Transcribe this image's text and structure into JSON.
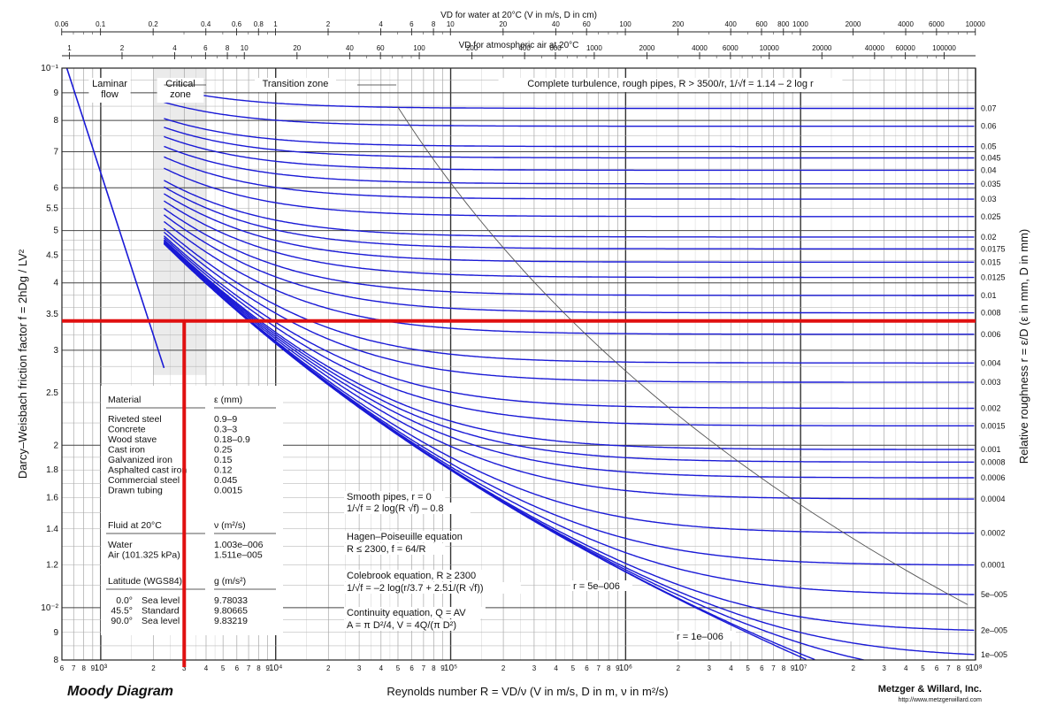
{
  "chart_data": {
    "type": "line",
    "title": "Moody Diagram",
    "publisher": "Metzger & Willard, Inc.",
    "url": "http://www.metzgerwillard.com",
    "x_axis": {
      "label_prefix": "Reynolds number",
      "label_formula": "R = VD/ν",
      "label_units": "(V in m/s, D in m, ν in m²/s)",
      "scale": "log",
      "range": [
        600,
        100000000
      ],
      "major_labels": [
        "10³",
        "10⁴",
        "10⁵",
        "10⁶",
        "10⁷",
        "10⁸"
      ]
    },
    "y_axis": {
      "label_prefix": "Darcy–Weisbach friction factor",
      "label_formula": "f = 2hDg / LV²",
      "scale": "log",
      "range": [
        0.008,
        0.1
      ],
      "tick_labels": [
        "10⁻¹",
        "9",
        "8",
        "7",
        "6",
        "5.5",
        "5",
        "4.5",
        "4",
        "3.5",
        "3",
        "2.5",
        "2",
        "1.8",
        "1.6",
        "1.4",
        "1.2",
        "10⁻²",
        "9",
        "8"
      ]
    },
    "right_axis": {
      "label": "Relative roughness  r = ε/D  (ε in mm, D in mm)",
      "values": [
        0.07,
        0.06,
        0.05,
        0.045,
        0.04,
        0.035,
        0.03,
        0.025,
        0.02,
        0.0175,
        0.015,
        0.0125,
        0.01,
        0.008,
        0.006,
        0.004,
        0.003,
        0.002,
        0.0015,
        0.001,
        0.0008,
        0.0006,
        0.0004,
        0.0002,
        0.0001,
        5e-05,
        2e-05,
        1e-05
      ],
      "labels": [
        "0.07",
        "0.06",
        "0.05",
        "0.045",
        "0.04",
        "0.035",
        "0.03",
        "0.025",
        "0.02",
        "0.0175",
        "0.015",
        "0.0125",
        "0.01",
        "0.008",
        "0.006",
        "0.004",
        "0.003",
        "0.002",
        "0.0015",
        "0.001",
        "0.0008",
        "0.0006",
        "0.0004",
        "0.0002",
        "0.0001",
        "5e–005",
        "2e–005",
        "1e–005"
      ]
    },
    "top_axis_water": {
      "label": "VD for water at 20°C (V in m/s, D in cm)",
      "ticks": [
        0.06,
        0.1,
        0.2,
        0.4,
        0.6,
        0.8,
        1,
        2,
        4,
        6,
        8,
        10,
        20,
        40,
        60,
        100,
        200,
        400,
        600,
        800,
        1000,
        2000,
        4000,
        6000,
        10000
      ],
      "labels": [
        "0.06",
        "0.1",
        "0.2",
        "0.4",
        "0.6",
        "0.8",
        "1",
        "2",
        "4",
        "6",
        "8",
        "10",
        "20",
        "40",
        "60",
        "100",
        "200",
        "400",
        "600",
        "800",
        "1000",
        "2000",
        "4000",
        "6000",
        "10000"
      ]
    },
    "top_axis_air": {
      "label": "VD for atmospheric air at 20°C",
      "ticks": [
        1,
        2,
        4,
        6,
        8,
        10,
        20,
        40,
        60,
        100,
        200,
        400,
        600,
        1000,
        2000,
        4000,
        6000,
        10000,
        20000,
        40000,
        60000,
        100000
      ],
      "labels": [
        "1",
        "2",
        "4",
        "6",
        "8",
        "10",
        "20",
        "40",
        "60",
        "100",
        "200",
        "400",
        "600",
        "1000",
        "2000",
        "4000",
        "6000",
        "10000",
        "20000",
        "40000",
        "60000",
        "100000"
      ]
    },
    "regions": [
      "Laminar flow",
      "Critical zone",
      "Transition zone",
      "Complete turbulence, rough pipes, R > 3500/r,  1/√f = 1.14 – 2 log r"
    ],
    "annotations": {
      "smooth_title": "Smooth pipes, r = 0",
      "smooth_eq": "1/√f = 2 log(R √f) – 0.8",
      "hp_title": "Hagen–Poiseuille equation",
      "hp_eq": "R ≤ 2300,  f = 64/R",
      "cb_title": "Colebrook equation, R ≥ 2300",
      "cb_eq": "1/√f = –2 log(r/3.7 + 2.51/(R √f))",
      "cont_title": "Continuity equation, Q = AV",
      "cont_eq": "A = π D²/4,  V = 4Q/(π D²)",
      "curve_label_1": "r = 5e–006",
      "curve_label_2": "r = 1e–006"
    },
    "materials": {
      "header": [
        "Material",
        "ε (mm)"
      ],
      "rows": [
        [
          "Riveted steel",
          "0.9–9"
        ],
        [
          "Concrete",
          "0.3–3"
        ],
        [
          "Wood stave",
          "0.18–0.9"
        ],
        [
          "Cast iron",
          "0.25"
        ],
        [
          "Galvanized iron",
          "0.15"
        ],
        [
          "Asphalted cast iron",
          "0.12"
        ],
        [
          "Commercial steel",
          "0.045"
        ],
        [
          "Drawn tubing",
          "0.0015"
        ]
      ]
    },
    "fluids": {
      "header": [
        "Fluid at 20°C",
        "ν (m²/s)"
      ],
      "rows": [
        [
          "Water",
          "1.003e–006"
        ],
        [
          "Air (101.325 kPa)",
          "1.511e–005"
        ]
      ]
    },
    "gravity": {
      "header": [
        "Latitude (WGS84)",
        "g (m/s²)"
      ],
      "rows": [
        [
          "0.0°",
          "Sea level",
          "9.78033"
        ],
        [
          "45.5°",
          "Standard",
          "9.80665"
        ],
        [
          "90.0°",
          "Sea level",
          "9.83219"
        ]
      ]
    },
    "highlight": {
      "color": "#e01010",
      "f": 0.034,
      "R": 3000
    },
    "colors": {
      "curves": "#1a1ad6",
      "grid": "#777777",
      "highlight": "#e01010"
    }
  }
}
